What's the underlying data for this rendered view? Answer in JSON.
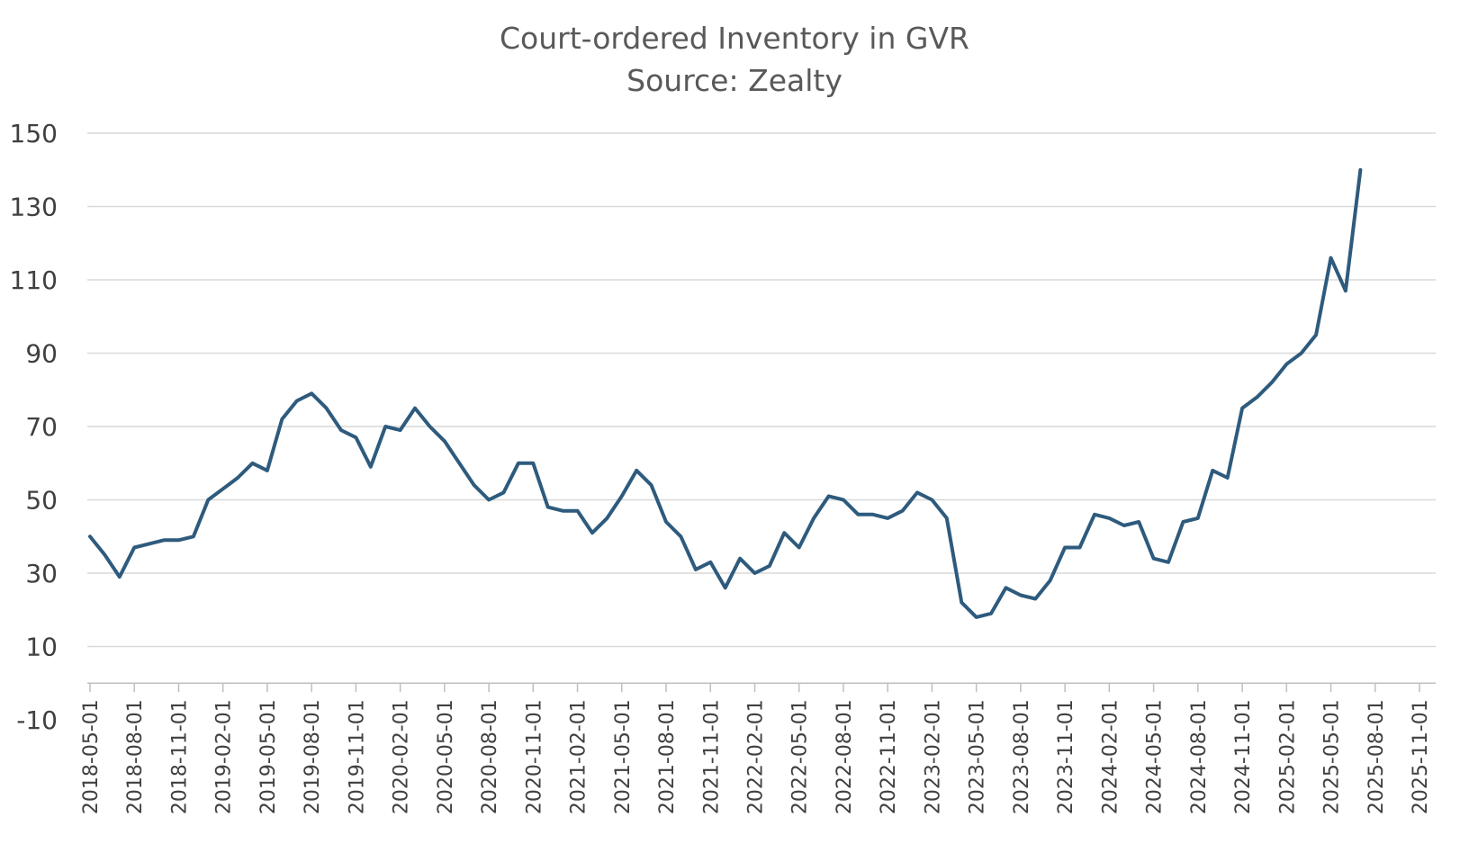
{
  "chart_data": {
    "type": "line",
    "title": "Court-ordered Inventory in GVR",
    "subtitle": "Source: Zealty",
    "xlabel": "",
    "ylabel": "",
    "ylim": [
      -10,
      150
    ],
    "yticks": [
      -10,
      10,
      30,
      50,
      70,
      90,
      110,
      130,
      150
    ],
    "grid": true,
    "legend": "none",
    "x_tick_labels": [
      "2018-05-01",
      "2018-08-01",
      "2018-11-01",
      "2019-02-01",
      "2019-05-01",
      "2019-08-01",
      "2019-11-01",
      "2020-02-01",
      "2020-05-01",
      "2020-08-01",
      "2020-11-01",
      "2021-02-01",
      "2021-05-01",
      "2021-08-01",
      "2021-11-01",
      "2022-02-01",
      "2022-05-01",
      "2022-08-01",
      "2022-11-01",
      "2023-02-01",
      "2023-05-01",
      "2023-08-01",
      "2023-11-01",
      "2024-02-01",
      "2024-05-01",
      "2024-08-01",
      "2024-11-01",
      "2025-02-01",
      "2025-05-01",
      "2025-08-01",
      "2025-11-01"
    ],
    "x_start": "2018-05-01",
    "x_end": "2025-11-01",
    "x_months_total": 90,
    "series": [
      {
        "name": "Court-ordered Inventory",
        "color": "#2e5b7d",
        "values": [
          40,
          35,
          29,
          37,
          38,
          39,
          39,
          40,
          50,
          53,
          56,
          60,
          58,
          72,
          77,
          79,
          75,
          69,
          67,
          59,
          70,
          69,
          75,
          70,
          66,
          60,
          54,
          50,
          52,
          60,
          60,
          48,
          47,
          47,
          41,
          45,
          51,
          58,
          54,
          44,
          40,
          31,
          33,
          26,
          34,
          30,
          32,
          41,
          37,
          45,
          51,
          50,
          46,
          46,
          45,
          47,
          52,
          50,
          45,
          22,
          18,
          19,
          26,
          24,
          23,
          28,
          37,
          37,
          46,
          45,
          43,
          44,
          34,
          33,
          44,
          45,
          58,
          56,
          75,
          78,
          82,
          87,
          90,
          95,
          116,
          107,
          140
        ]
      }
    ]
  }
}
